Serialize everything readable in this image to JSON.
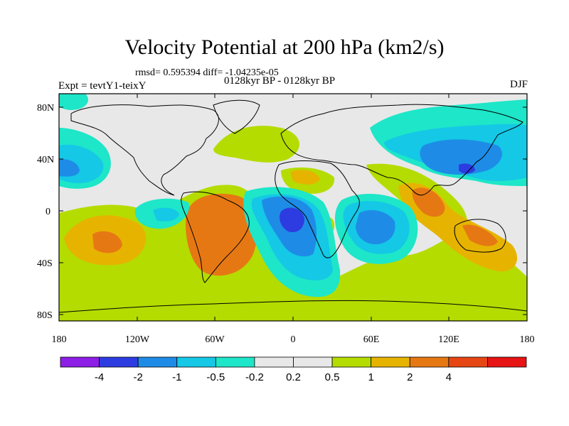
{
  "title": "Velocity Potential at 200 hPa (km2/s)",
  "stats": "rmsd= 0.595394 diff= -1.04235e-05",
  "experiment": "Expt = tevtY1-teixY",
  "case": "0128kyr BP - 0128kyr BP",
  "season": "DJF",
  "lat_labels": [
    "80N",
    "40N",
    "0",
    "40S",
    "80S"
  ],
  "lon_labels": [
    "180",
    "120W",
    "60W",
    "0",
    "60E",
    "120E",
    "180"
  ],
  "colorbar": {
    "colors": [
      "#8c1ee6",
      "#2d3ce0",
      "#1e8ce6",
      "#14c8e6",
      "#1ee6c8",
      "#e8e8e8",
      "#e8e8e8",
      "#b4dc00",
      "#e6b400",
      "#e67814",
      "#e64614",
      "#e61414"
    ],
    "labels": [
      "-4",
      "-2",
      "-1",
      "-0.5",
      "-0.2",
      "0.2",
      "0.5",
      "1",
      "2",
      "4"
    ]
  },
  "palette": {
    "land_outline": "#000000",
    "neutral": "#e8e8e8"
  }
}
